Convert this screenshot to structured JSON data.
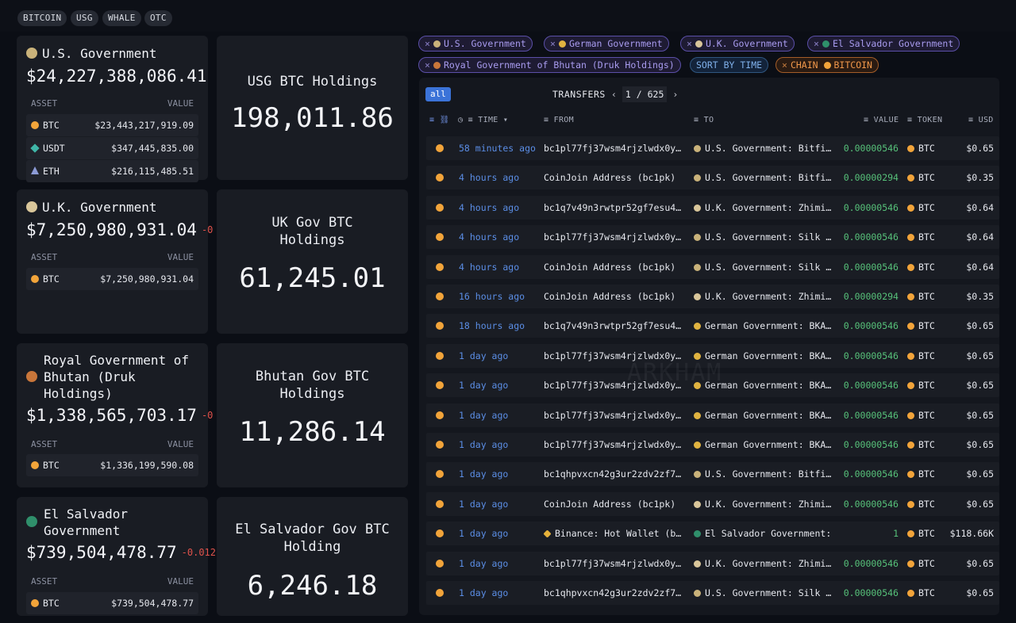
{
  "tags": [
    "BITCOIN",
    "USG",
    "WHALE",
    "OTC"
  ],
  "colors": {
    "btc": "#f2a43a",
    "accent": "#3b73d8",
    "positive": "#57c27a",
    "negative": "#e0524b"
  },
  "entities": [
    {
      "name": "U.S. Government",
      "total": "$24,227,388,086.41",
      "change": "",
      "headers": [
        "ASSET",
        "VALUE"
      ],
      "assets": [
        {
          "name": "BTC",
          "value": "$23,443,217,919.09",
          "icon": "btc-icon"
        },
        {
          "name": "USDT",
          "value": "$347,445,835.00",
          "icon": "usdt-icon"
        },
        {
          "name": "ETH",
          "value": "$216,115,485.51",
          "icon": "eth-icon"
        }
      ],
      "holding_title": "USG BTC Holdings",
      "holding_value": "198,011.86"
    },
    {
      "name": "U.K. Government",
      "total": "$7,250,980,931.04",
      "change": "-0",
      "headers": [
        "ASSET",
        "VALUE"
      ],
      "assets": [
        {
          "name": "BTC",
          "value": "$7,250,980,931.04",
          "icon": "btc-icon"
        }
      ],
      "holding_title": "UK Gov BTC Holdings",
      "holding_value": "61,245.01"
    },
    {
      "name": "Royal Government of Bhutan (Druk Holdings)",
      "total": "$1,338,565,703.17",
      "change": "-0",
      "headers": [
        "ASSET",
        "VALUE"
      ],
      "assets": [
        {
          "name": "BTC",
          "value": "$1,336,199,590.08",
          "icon": "btc-icon"
        }
      ],
      "holding_title": "Bhutan Gov BTC Holdings",
      "holding_value": "11,286.14"
    },
    {
      "name": "El Salvador Government",
      "total": "$739,504,478.77",
      "change": "-0.012",
      "headers": [
        "ASSET",
        "VALUE"
      ],
      "assets": [
        {
          "name": "BTC",
          "value": "$739,504,478.77",
          "icon": "btc-icon"
        }
      ],
      "holding_title": "El Salvador Gov BTC Holding",
      "holding_value": "6,246.18"
    }
  ],
  "filters": {
    "entities": [
      "U.S. Government",
      "German Government",
      "U.K. Government",
      "El Salvador Government",
      "Royal Government of Bhutan (Druk Holdings)"
    ],
    "sort": "SORT BY TIME",
    "chain_label": "CHAIN",
    "chain_value": "BITCOIN"
  },
  "transfers": {
    "filter_all": "all",
    "label": "TRANSFERS",
    "page": "1",
    "page_sep": "/",
    "pages": "625",
    "columns": {
      "time": "TIME",
      "from": "FROM",
      "to": "TO",
      "value": "VALUE",
      "token": "TOKEN",
      "usd": "USD"
    },
    "rows": [
      {
        "time": "58 minutes ago",
        "from": "bc1pl77fj37wsm4rjzlwdx0y…",
        "to": "U.S. Government: Bitfi…",
        "to_icon": "usg-seal-icon",
        "value": "0.00000546",
        "token": "BTC",
        "usd": "$0.65"
      },
      {
        "time": "4 hours ago",
        "from": "CoinJoin Address (bc1pk)",
        "to": "U.S. Government: Bitfi…",
        "to_icon": "usg-seal-icon",
        "value": "0.00000294",
        "token": "BTC",
        "usd": "$0.35"
      },
      {
        "time": "4 hours ago",
        "from": "bc1q7v49n3rwtpr52gf7esu4…",
        "to": "U.K. Government: Zhimi…",
        "to_icon": "uk-crest-icon",
        "value": "0.00000546",
        "token": "BTC",
        "usd": "$0.64"
      },
      {
        "time": "4 hours ago",
        "from": "bc1pl77fj37wsm4rjzlwdx0y…",
        "to": "U.S. Government: Silk …",
        "to_icon": "usg-seal-icon",
        "value": "0.00000546",
        "token": "BTC",
        "usd": "$0.64"
      },
      {
        "time": "4 hours ago",
        "from": "CoinJoin Address (bc1pk)",
        "to": "U.S. Government: Silk …",
        "to_icon": "usg-seal-icon",
        "value": "0.00000546",
        "token": "BTC",
        "usd": "$0.64"
      },
      {
        "time": "16 hours ago",
        "from": "CoinJoin Address (bc1pk)",
        "to": "U.K. Government: Zhimi…",
        "to_icon": "uk-crest-icon",
        "value": "0.00000294",
        "token": "BTC",
        "usd": "$0.35"
      },
      {
        "time": "18 hours ago",
        "from": "bc1q7v49n3rwtpr52gf7esu4…",
        "to": "German Government: BKA…",
        "to_icon": "german-eagle-icon",
        "value": "0.00000546",
        "token": "BTC",
        "usd": "$0.65"
      },
      {
        "time": "1 day ago",
        "from": "bc1pl77fj37wsm4rjzlwdx0y…",
        "to": "German Government: BKA…",
        "to_icon": "german-eagle-icon",
        "value": "0.00000546",
        "token": "BTC",
        "usd": "$0.65"
      },
      {
        "time": "1 day ago",
        "from": "bc1pl77fj37wsm4rjzlwdx0y…",
        "to": "German Government: BKA…",
        "to_icon": "german-eagle-icon",
        "value": "0.00000546",
        "token": "BTC",
        "usd": "$0.65"
      },
      {
        "time": "1 day ago",
        "from": "bc1pl77fj37wsm4rjzlwdx0y…",
        "to": "German Government: BKA…",
        "to_icon": "german-eagle-icon",
        "value": "0.00000546",
        "token": "BTC",
        "usd": "$0.65"
      },
      {
        "time": "1 day ago",
        "from": "bc1pl77fj37wsm4rjzlwdx0y…",
        "to": "German Government: BKA…",
        "to_icon": "german-eagle-icon",
        "value": "0.00000546",
        "token": "BTC",
        "usd": "$0.65"
      },
      {
        "time": "1 day ago",
        "from": "bc1qhpvxcn42g3ur2zdv2zf7…",
        "to": "U.S. Government: Bitfi…",
        "to_icon": "usg-seal-icon",
        "value": "0.00000546",
        "token": "BTC",
        "usd": "$0.65"
      },
      {
        "time": "1 day ago",
        "from": "CoinJoin Address (bc1pk)",
        "to": "U.K. Government: Zhimi…",
        "to_icon": "uk-crest-icon",
        "value": "0.00000546",
        "token": "BTC",
        "usd": "$0.65"
      },
      {
        "time": "1 day ago",
        "from": "Binance: Hot Wallet (b…",
        "to": "El Salvador Government:",
        "to_icon": "el-salvador-icon",
        "value": "1",
        "token": "BTC",
        "usd": "$118.66K"
      },
      {
        "time": "1 day ago",
        "from": "bc1pl77fj37wsm4rjzlwdx0y…",
        "to": "U.K. Government: Zhimi…",
        "to_icon": "uk-crest-icon",
        "value": "0.00000546",
        "token": "BTC",
        "usd": "$0.65"
      },
      {
        "time": "1 day ago",
        "from": "bc1qhpvxcn42g3ur2zdv2zf7…",
        "to": "U.S. Government: Silk …",
        "to_icon": "usg-seal-icon",
        "value": "0.00000546",
        "token": "BTC",
        "usd": "$0.65"
      }
    ]
  }
}
